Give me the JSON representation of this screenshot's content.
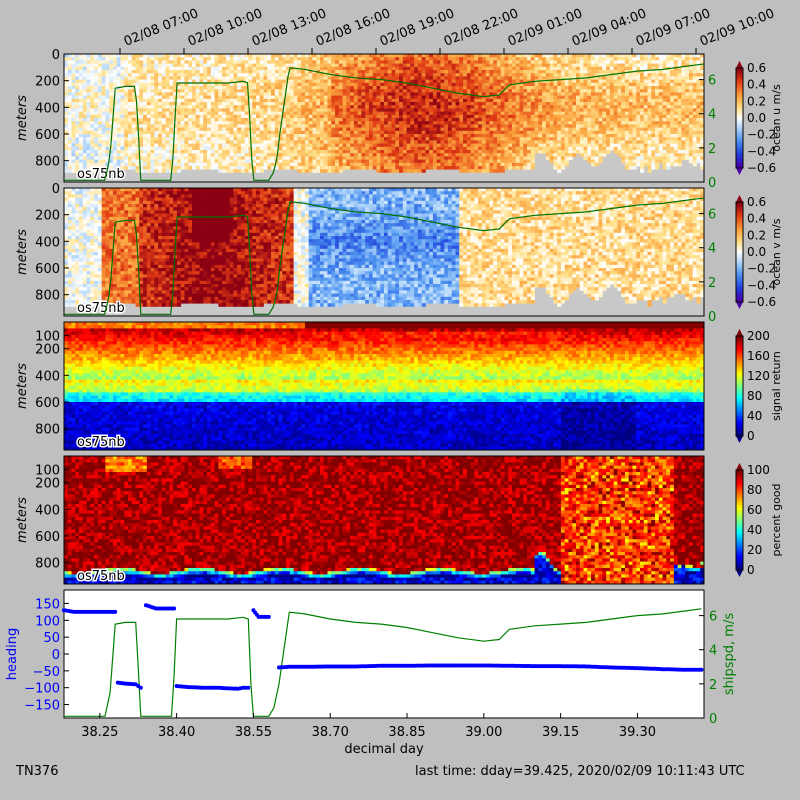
{
  "chart_data": {
    "type": "heatmap",
    "top_time_labels": [
      "02/08 07:00",
      "02/08 10:00",
      "02/08 13:00",
      "02/08 16:00",
      "02/08 19:00",
      "02/08 22:00",
      "02/09 01:00",
      "02/09 04:00",
      "02/09 07:00",
      "02/09 10:00"
    ],
    "depth_label": "meters",
    "depth_ticks": [
      "0",
      "200",
      "400",
      "600",
      "800"
    ],
    "depth_ticks_lower": [
      "100",
      "200",
      "400",
      "600",
      "800"
    ],
    "instrument_label": "os75nb",
    "panels": [
      {
        "id": "u",
        "colorbar_label": "ocean u m/s",
        "cmap": "redblue",
        "cbar_ticks": [
          "0.6",
          "0.4",
          "0.2",
          "0.0",
          "−0.2",
          "−0.4",
          "−0.6"
        ],
        "shipspd_ticks": [
          "6",
          "4",
          "2",
          "0"
        ]
      },
      {
        "id": "v",
        "colorbar_label": "ocean v m/s",
        "cmap": "redblue",
        "cbar_ticks": [
          "0.6",
          "0.4",
          "0.2",
          "0.0",
          "−0.2",
          "−0.4",
          "−0.6"
        ],
        "shipspd_ticks": [
          "6",
          "4",
          "2",
          "0"
        ]
      },
      {
        "id": "amp",
        "colorbar_label": "signal return",
        "cmap": "jet",
        "cbar_ticks": [
          "200",
          "160",
          "120",
          "80",
          "40",
          "0"
        ]
      },
      {
        "id": "pg",
        "colorbar_label": "percent good",
        "cmap": "jet",
        "cbar_ticks": [
          "100",
          "80",
          "60",
          "40",
          "20",
          "0"
        ]
      }
    ],
    "heading_panel": {
      "ylabel_left": "heading",
      "ylabel_right": "shipspd, m/s",
      "left_ticks": [
        "150",
        "100",
        "50",
        "0",
        "−50",
        "−100",
        "−150"
      ],
      "right_ticks": [
        "6",
        "4",
        "2",
        "0"
      ],
      "xlabel": "decimal day",
      "x_ticks": [
        "38.25",
        "38.40",
        "38.55",
        "38.70",
        "38.85",
        "39.00",
        "39.15",
        "39.30"
      ],
      "xlim": [
        38.18,
        39.43
      ],
      "heading_ylim": [
        -190,
        190
      ],
      "shipspd_ylim": [
        0,
        7.5
      ],
      "heading_series": {
        "name": "heading",
        "color": "#0000ff",
        "x": [
          38.18,
          38.2,
          38.22,
          38.24,
          38.26,
          38.28,
          38.285,
          38.3,
          38.32,
          38.33,
          38.34,
          38.36,
          38.38,
          38.395,
          38.4,
          38.42,
          38.45,
          38.48,
          38.5,
          38.52,
          38.53,
          38.54,
          38.55,
          38.56,
          38.58,
          38.6,
          38.62,
          38.65,
          38.7,
          38.75,
          38.8,
          38.85,
          38.9,
          38.95,
          39.0,
          39.05,
          39.1,
          39.15,
          39.2,
          39.25,
          39.3,
          39.35,
          39.4,
          39.425
        ],
        "y": [
          130,
          125,
          125,
          125,
          125,
          125,
          -85,
          -88,
          -90,
          -100,
          145,
          135,
          135,
          135,
          -95,
          -98,
          -100,
          -100,
          -102,
          -103,
          -100,
          -100,
          130,
          110,
          110,
          -40,
          -38,
          -38,
          -37,
          -37,
          -35,
          -35,
          -34,
          -34,
          -34,
          -35,
          -36,
          -36,
          -37,
          -40,
          -42,
          -45,
          -47,
          -47
        ]
      },
      "shipspd_series": {
        "name": "shipspd",
        "color": "#008000",
        "x": [
          38.18,
          38.25,
          38.26,
          38.27,
          38.28,
          38.3,
          38.32,
          38.325,
          38.33,
          38.36,
          38.38,
          38.39,
          38.395,
          38.4,
          38.42,
          38.45,
          38.5,
          38.53,
          38.54,
          38.545,
          38.55,
          38.56,
          38.57,
          38.58,
          38.59,
          38.6,
          38.62,
          38.65,
          38.7,
          38.75,
          38.8,
          38.85,
          38.9,
          38.95,
          39.0,
          39.03,
          39.05,
          39.1,
          39.15,
          39.2,
          39.25,
          39.3,
          39.35,
          39.4,
          39.425
        ],
        "y": [
          0.1,
          0.1,
          0.1,
          1.5,
          5.5,
          5.6,
          5.6,
          3.0,
          0.1,
          0.1,
          0.1,
          0.1,
          2.5,
          5.8,
          5.8,
          5.8,
          5.8,
          5.9,
          5.8,
          2.0,
          0.1,
          0.1,
          0.1,
          0.1,
          0.6,
          2.0,
          6.2,
          6.1,
          5.8,
          5.6,
          5.5,
          5.3,
          5.0,
          4.7,
          4.5,
          4.6,
          5.2,
          5.4,
          5.5,
          5.6,
          5.8,
          6.0,
          6.1,
          6.3,
          6.4
        ]
      }
    }
  },
  "footer": {
    "left": "TN376",
    "right": "last time: dday=39.425,  2020/02/09 10:11:43 UTC"
  }
}
